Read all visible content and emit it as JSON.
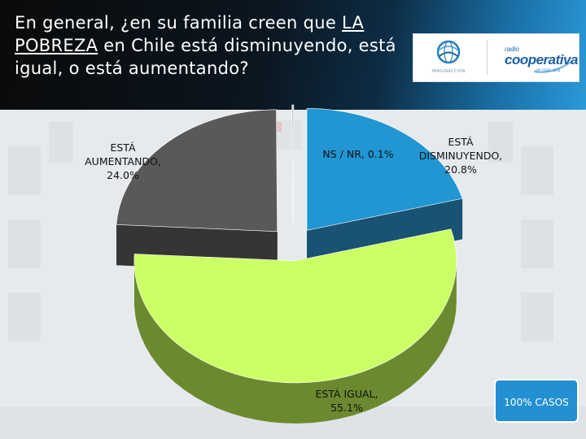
{
  "header": {
    "title_part1": "En general, ¿en su familia creen que ",
    "title_under1": "LA",
    "title_under2": "POBREZA",
    "title_part2": " en Chile está disminuyendo, está igual, o está aumentando?"
  },
  "logos": {
    "left_sub": "IMAGINACCION",
    "brand_small": "radio",
    "brand_big": "cooperativa",
    "brand_tag": "ve más allá"
  },
  "badge": {
    "label": "100% CASOS"
  },
  "colors": {
    "header_dark": "#0a0a0a",
    "header_blue": "#2a9ad8",
    "disminuyendo": "#2196d3",
    "disminuyendo_side": "#0e4a6c",
    "igual": "#ccff66",
    "igual_side": "#6b8a2f",
    "aumentando": "#595959",
    "aumentando_side": "#2b2b2b",
    "ns_nr": "#cccccc",
    "badge": "#2290d2"
  },
  "chart_data": {
    "type": "pie",
    "style": "3d-exploded",
    "title": "En general, ¿en su familia creen que LA POBREZA en Chile está disminuyendo, está igual, o está aumentando?",
    "series": [
      {
        "name": "ESTÁ DISMINUYENDO",
        "value": 20.8,
        "label": "20.8%"
      },
      {
        "name": "ESTÁ IGUAL",
        "value": 55.1,
        "label": "55.1%"
      },
      {
        "name": "ESTÁ AUMENTANDO",
        "value": 24.0,
        "label": "24.0%"
      },
      {
        "name": "NS / NR",
        "value": 0.1,
        "label": "0.1%"
      }
    ],
    "labels": {
      "aumentando_line1": "ESTÁ",
      "aumentando_line2": "AUMENTANDO,",
      "aumentando_line3": "24.0%",
      "ns": "NS / NR, 0.1%",
      "disminuyendo_line1": "ESTÁ",
      "disminuyendo_line2": "DISMINUYENDO,",
      "disminuyendo_line3": "20.8%",
      "igual_line1": "ESTÁ IGUAL,",
      "igual_line2": "55.1%"
    }
  }
}
